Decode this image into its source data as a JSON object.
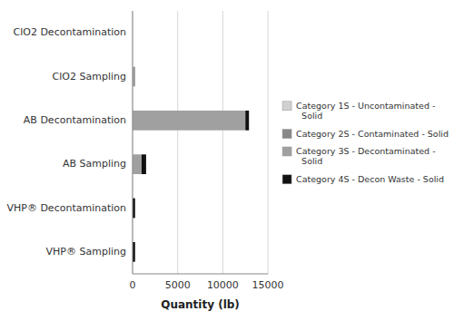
{
  "chart_data": {
    "type": "bar",
    "orientation": "horizontal",
    "stacked": true,
    "categories": [
      "ClO2 Decontamination",
      "ClO2 Sampling",
      "AB Decontamination",
      "AB Sampling",
      "VHP® Decontamination",
      "VHP® Sampling"
    ],
    "series": [
      {
        "name": "Category 1S - Uncontaminated -\n  Solid",
        "color": "#d0d0d0",
        "values": [
          0,
          0,
          0,
          0,
          0,
          0
        ]
      },
      {
        "name": "Category 2S - Contaminated - Solid",
        "color": "#888888",
        "values": [
          0,
          0,
          0,
          0,
          0,
          0
        ]
      },
      {
        "name": "Category 3S - Decontaminated -\n  Solid",
        "color": "#a0a0a0",
        "values": [
          0,
          300,
          12500,
          1000,
          0,
          0
        ]
      },
      {
        "name": "Category 4S - Decon Waste - Solid",
        "color": "#111111",
        "values": [
          0,
          0,
          400,
          500,
          280,
          280
        ]
      }
    ],
    "xlabel": "Quantity (lb)",
    "xlim": [
      0,
      15000
    ],
    "xticks": [
      0,
      5000,
      10000,
      15000
    ],
    "grid": true,
    "legend": "right"
  }
}
